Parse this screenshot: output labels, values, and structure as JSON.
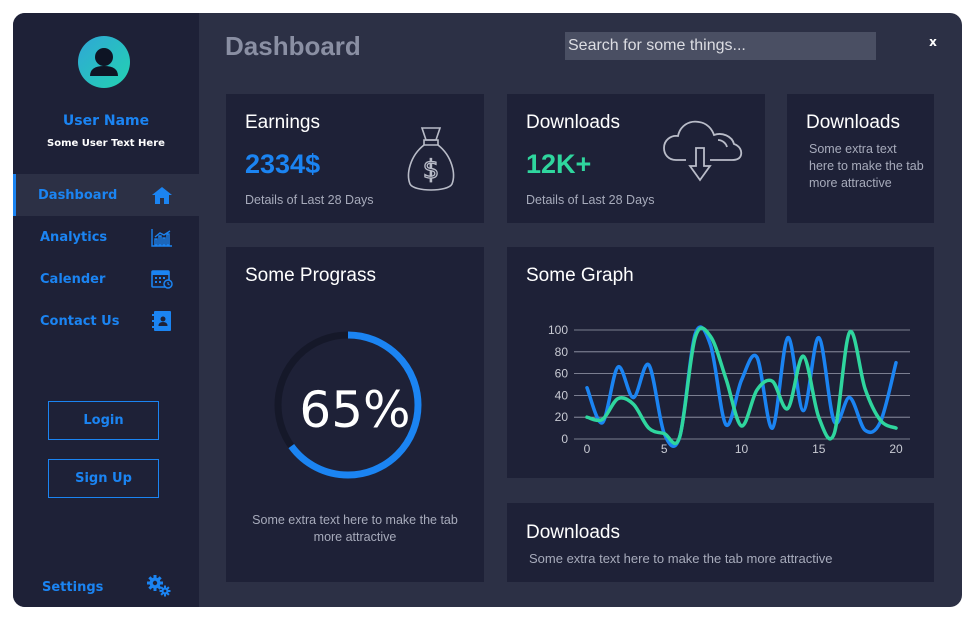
{
  "sidebar": {
    "user_name": "User Name",
    "user_text": "Some User Text Here",
    "items": [
      {
        "label": "Dashboard",
        "icon": "home-icon",
        "active": true
      },
      {
        "label": "Analytics",
        "icon": "bar-chart-icon",
        "active": false
      },
      {
        "label": "Calender",
        "icon": "calendar-icon",
        "active": false
      },
      {
        "label": "Contact Us",
        "icon": "contact-book-icon",
        "active": false
      }
    ],
    "login_label": "Login",
    "signup_label": "Sign Up",
    "settings_label": "Settings"
  },
  "header": {
    "title": "Dashboard",
    "search_placeholder": "Search for some things...",
    "close_label": "x"
  },
  "cards": {
    "earnings": {
      "title": "Earnings",
      "value": "2334$",
      "sub": "Details of Last 28 Days",
      "icon": "money-bag-icon"
    },
    "downloads": {
      "title": "Downloads",
      "value": "12K+",
      "sub": "Details of Last 28 Days",
      "icon": "cloud-download-icon"
    },
    "downloads_small": {
      "title": "Downloads",
      "text": "Some extra text here to make the tab more attractive"
    },
    "progress": {
      "title": "Some Prograss",
      "value_label": "65%",
      "fraction": 0.65,
      "text": "Some extra text here to make the tab more attractive"
    },
    "graph": {
      "title": "Some Graph"
    },
    "downloads_wide": {
      "title": "Downloads",
      "text": "Some extra text here to make the tab more attractive"
    }
  },
  "colors": {
    "accent_blue": "#1b84f2",
    "accent_green": "#2fd69e",
    "sidebar_bg": "#1e2137",
    "main_bg": "#2c3045"
  },
  "chart_data": {
    "type": "line",
    "title": "",
    "xlabel": "",
    "ylabel": "",
    "x": [
      0,
      1,
      2,
      3,
      4,
      5,
      6,
      7,
      8,
      9,
      10,
      11,
      12,
      13,
      14,
      15,
      16,
      17,
      18,
      19,
      20
    ],
    "xticks": [
      0,
      5,
      10,
      15,
      20
    ],
    "yticks": [
      0,
      20,
      40,
      60,
      80,
      100
    ],
    "xlim": [
      0,
      20
    ],
    "ylim": [
      0,
      100
    ],
    "grid": true,
    "series": [
      {
        "color": "#1b84f2",
        "values": [
          47,
          15,
          66,
          38,
          68,
          5,
          2,
          96,
          86,
          13,
          54,
          75,
          10,
          93,
          26,
          93,
          16,
          38,
          8,
          16,
          70
        ]
      },
      {
        "color": "#2fd69e",
        "values": [
          20,
          18,
          37,
          32,
          10,
          5,
          2,
          93,
          94,
          55,
          12,
          45,
          53,
          28,
          76,
          20,
          5,
          98,
          46,
          17,
          10
        ]
      }
    ]
  }
}
